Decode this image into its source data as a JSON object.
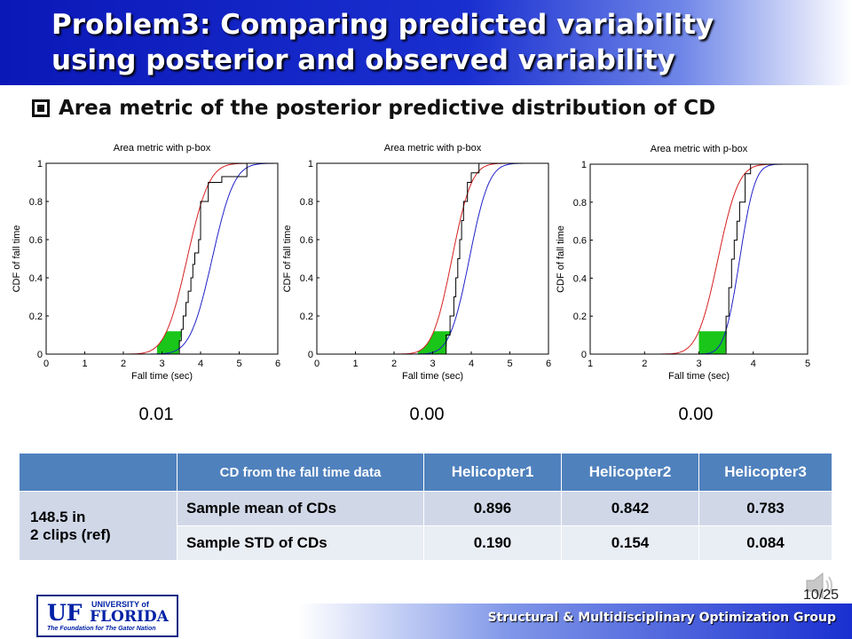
{
  "slide": {
    "title_line1": "Problem3: Comparing predicted variability",
    "title_line2": "using posterior and observed variability",
    "bullet": "Area metric of the posterior predictive distribution of CD",
    "p_values": [
      "0.01",
      "0.00",
      "0.00"
    ],
    "page": "10/25",
    "footer": "Structural & Multidisciplinary Optimization Group",
    "logo": {
      "mark": "UF",
      "university_of": "UNIVERSITY of",
      "florida": "FLORIDA",
      "tagline": "The Foundation for The Gator Nation"
    },
    "speaker_icon": "speaker-icon"
  },
  "table": {
    "header": [
      "",
      "CD from the fall time data",
      "Helicopter1",
      "Helicopter2",
      "Helicopter3"
    ],
    "row_label": [
      "148.5 in",
      "2 clips (ref)"
    ],
    "rows": [
      {
        "metric": "Sample mean of CDs",
        "values": [
          "0.896",
          "0.842",
          "0.783"
        ]
      },
      {
        "metric": "Sample STD of CDs",
        "values": [
          "0.190",
          "0.154",
          "0.084"
        ]
      }
    ]
  },
  "chart_data": [
    {
      "type": "line",
      "title": "Area metric with p-box",
      "xlabel": "Fall time (sec)",
      "ylabel": "CDF of fall time",
      "xlim": [
        0,
        6
      ],
      "ylim": [
        0,
        1
      ],
      "xticks": [
        "0",
        "1",
        "2",
        "3",
        "4",
        "5",
        "6"
      ],
      "yticks": [
        "0",
        "0.2",
        "0.4",
        "0.6",
        "0.8",
        "1"
      ],
      "series": [
        {
          "color": "#d62020",
          "kind": "normal_cdf",
          "mean": 3.65,
          "std": 0.45
        },
        {
          "color": "#2020c8",
          "kind": "normal_cdf",
          "mean": 4.3,
          "std": 0.45
        },
        {
          "color": "#000000",
          "kind": "step",
          "x": [
            3.25,
            3.45,
            3.5,
            3.55,
            3.62,
            3.68,
            3.75,
            3.8,
            3.85,
            3.95,
            4.0,
            4.2,
            4.55,
            5.2
          ],
          "y": [
            0,
            0.07,
            0.13,
            0.2,
            0.27,
            0.33,
            0.4,
            0.47,
            0.53,
            0.6,
            0.8,
            0.9,
            0.93,
            1.0
          ]
        }
      ],
      "fill_color": "#00c000"
    },
    {
      "type": "line",
      "title": "Area metric with p-box",
      "xlabel": "Fall time (sec)",
      "ylabel": "CDF of fall time",
      "xlim": [
        0,
        6
      ],
      "ylim": [
        0,
        1
      ],
      "xticks": [
        "0",
        "1",
        "2",
        "3",
        "4",
        "5",
        "6"
      ],
      "yticks": [
        "0",
        "0.2",
        "0.4",
        "0.6",
        "0.8",
        "1"
      ],
      "series": [
        {
          "color": "#d62020",
          "kind": "normal_cdf",
          "mean": 3.5,
          "std": 0.4
        },
        {
          "color": "#2020c8",
          "kind": "normal_cdf",
          "mean": 3.95,
          "std": 0.4
        },
        {
          "color": "#000000",
          "kind": "step",
          "x": [
            3.0,
            3.35,
            3.45,
            3.55,
            3.6,
            3.65,
            3.7,
            3.75,
            3.8,
            3.9,
            4.0,
            4.2
          ],
          "y": [
            0,
            0.1,
            0.2,
            0.3,
            0.4,
            0.5,
            0.6,
            0.7,
            0.8,
            0.9,
            0.95,
            1.0
          ]
        }
      ],
      "fill_color": "#00c000"
    },
    {
      "type": "line",
      "title": "Area metric with p-box",
      "xlabel": "Fall time (sec)",
      "ylabel": "CDF of fall time",
      "xlim": [
        1,
        5
      ],
      "ylim": [
        0,
        1
      ],
      "xticks": [
        "1",
        "2",
        "3",
        "4",
        "5"
      ],
      "yticks": [
        "0",
        "0.2",
        "0.4",
        "0.6",
        "0.8",
        "1"
      ],
      "series": [
        {
          "color": "#d62020",
          "kind": "normal_cdf",
          "mean": 3.35,
          "std": 0.3
        },
        {
          "color": "#2020c8",
          "kind": "normal_cdf",
          "mean": 3.75,
          "std": 0.22
        },
        {
          "color": "#000000",
          "kind": "step",
          "x": [
            3.4,
            3.5,
            3.55,
            3.6,
            3.65,
            3.7,
            3.75,
            3.85,
            3.95
          ],
          "y": [
            0,
            0.2,
            0.35,
            0.5,
            0.6,
            0.7,
            0.8,
            0.95,
            1.0
          ]
        }
      ],
      "fill_color": "#00c000"
    }
  ]
}
